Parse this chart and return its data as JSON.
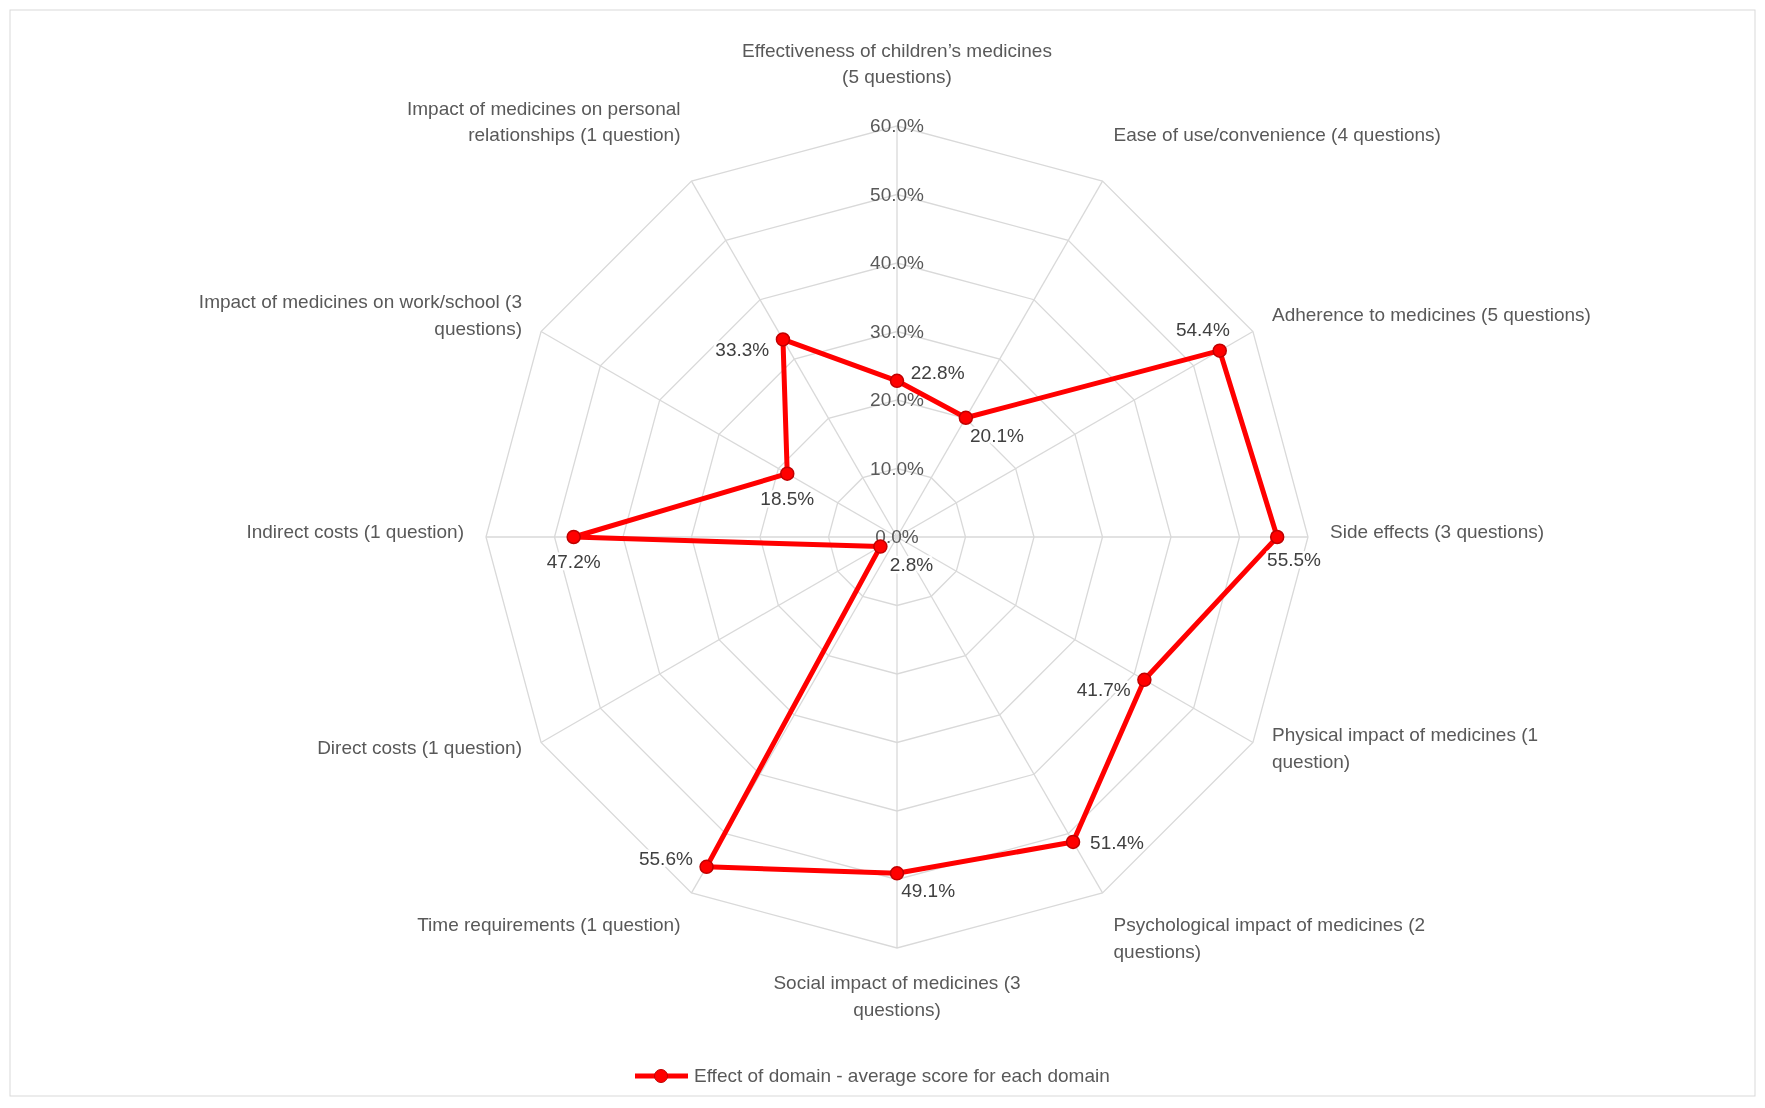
{
  "chart_data": {
    "type": "radar",
    "categories": [
      "Effectiveness of children’s medicines (5 questions)",
      "Ease of use/convenience (4 questions)",
      "Adherence to medicines (5 questions)",
      "Side effects (3 questions)",
      "Physical impact of medicines (1 question)",
      "Psychological impact of medicines (2 questions)",
      "Social impact of medicines (3 questions)",
      "Time requirements (1 question)",
      "Direct costs (1 question)",
      "Indirect costs (1 question)",
      "Impact of medicines on work/school (3 questions)",
      "Impact of medicines on personal relationships (1 question)"
    ],
    "series": [
      {
        "name": "Effect of domain - average score for each domain",
        "color": "#ff0000",
        "values": [
          22.8,
          20.1,
          54.4,
          55.5,
          41.7,
          51.4,
          49.1,
          55.6,
          2.8,
          47.2,
          18.5,
          33.3
        ],
        "value_labels": [
          "22.8%",
          "20.1%",
          "54.4%",
          "55.5%",
          "41.7%",
          "51.4%",
          "49.1%",
          "55.6%",
          "2.8%",
          "47.2%",
          "18.5%",
          "33.3%"
        ]
      }
    ],
    "ylim": [
      0,
      60
    ],
    "yticks": [
      {
        "value": 0,
        "label": "0.0%"
      },
      {
        "value": 10,
        "label": "10.0%"
      },
      {
        "value": 20,
        "label": "20.0%"
      },
      {
        "value": 30,
        "label": "30.0%"
      },
      {
        "value": 40,
        "label": "40.0%"
      },
      {
        "value": 50,
        "label": "50.0%"
      },
      {
        "value": 60,
        "label": "60.0%"
      }
    ],
    "grid": true,
    "legend": "bottom",
    "marker": "circle",
    "line_style": "solid"
  }
}
